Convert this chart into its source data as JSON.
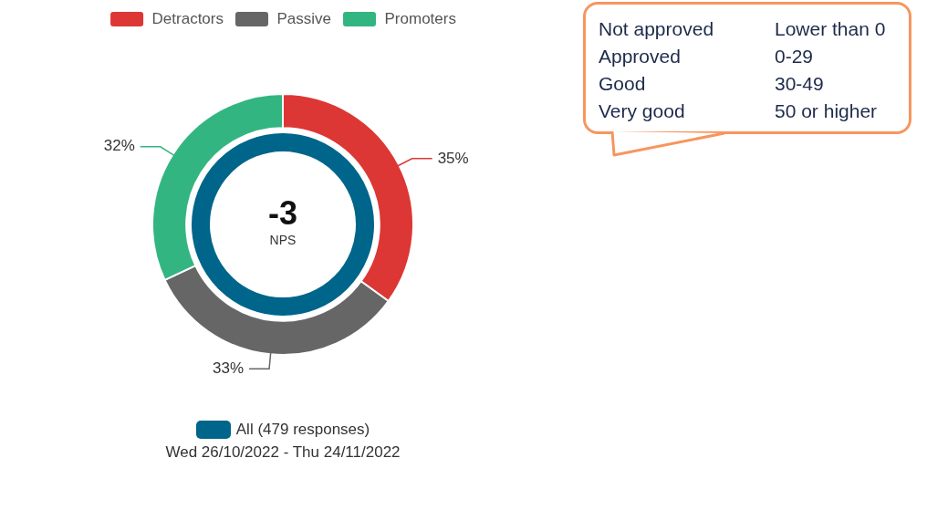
{
  "chart_data": [
    {
      "type": "donut",
      "categories": [
        "Detractors",
        "Passive",
        "Promoters"
      ],
      "colors": [
        "#dc3734",
        "#666666",
        "#33b582"
      ],
      "series": [
        {
          "name": "All (479 responses)",
          "color": "#00658a",
          "values": [
            35,
            33,
            32
          ],
          "value_labels": [
            "35%",
            "33%",
            "32%"
          ]
        }
      ],
      "subtitle": "Wed 26/10/2022 - Thu 24/11/2022",
      "annotations": [
        "-3",
        "NPS"
      ],
      "legend": "top"
    },
    {
      "type": "other",
      "annotations": [
        "Not approved",
        "Lower than 0",
        "Approved",
        "0-29",
        "Good",
        "30-49",
        "Very good",
        "50 or higher"
      ]
    }
  ]
}
